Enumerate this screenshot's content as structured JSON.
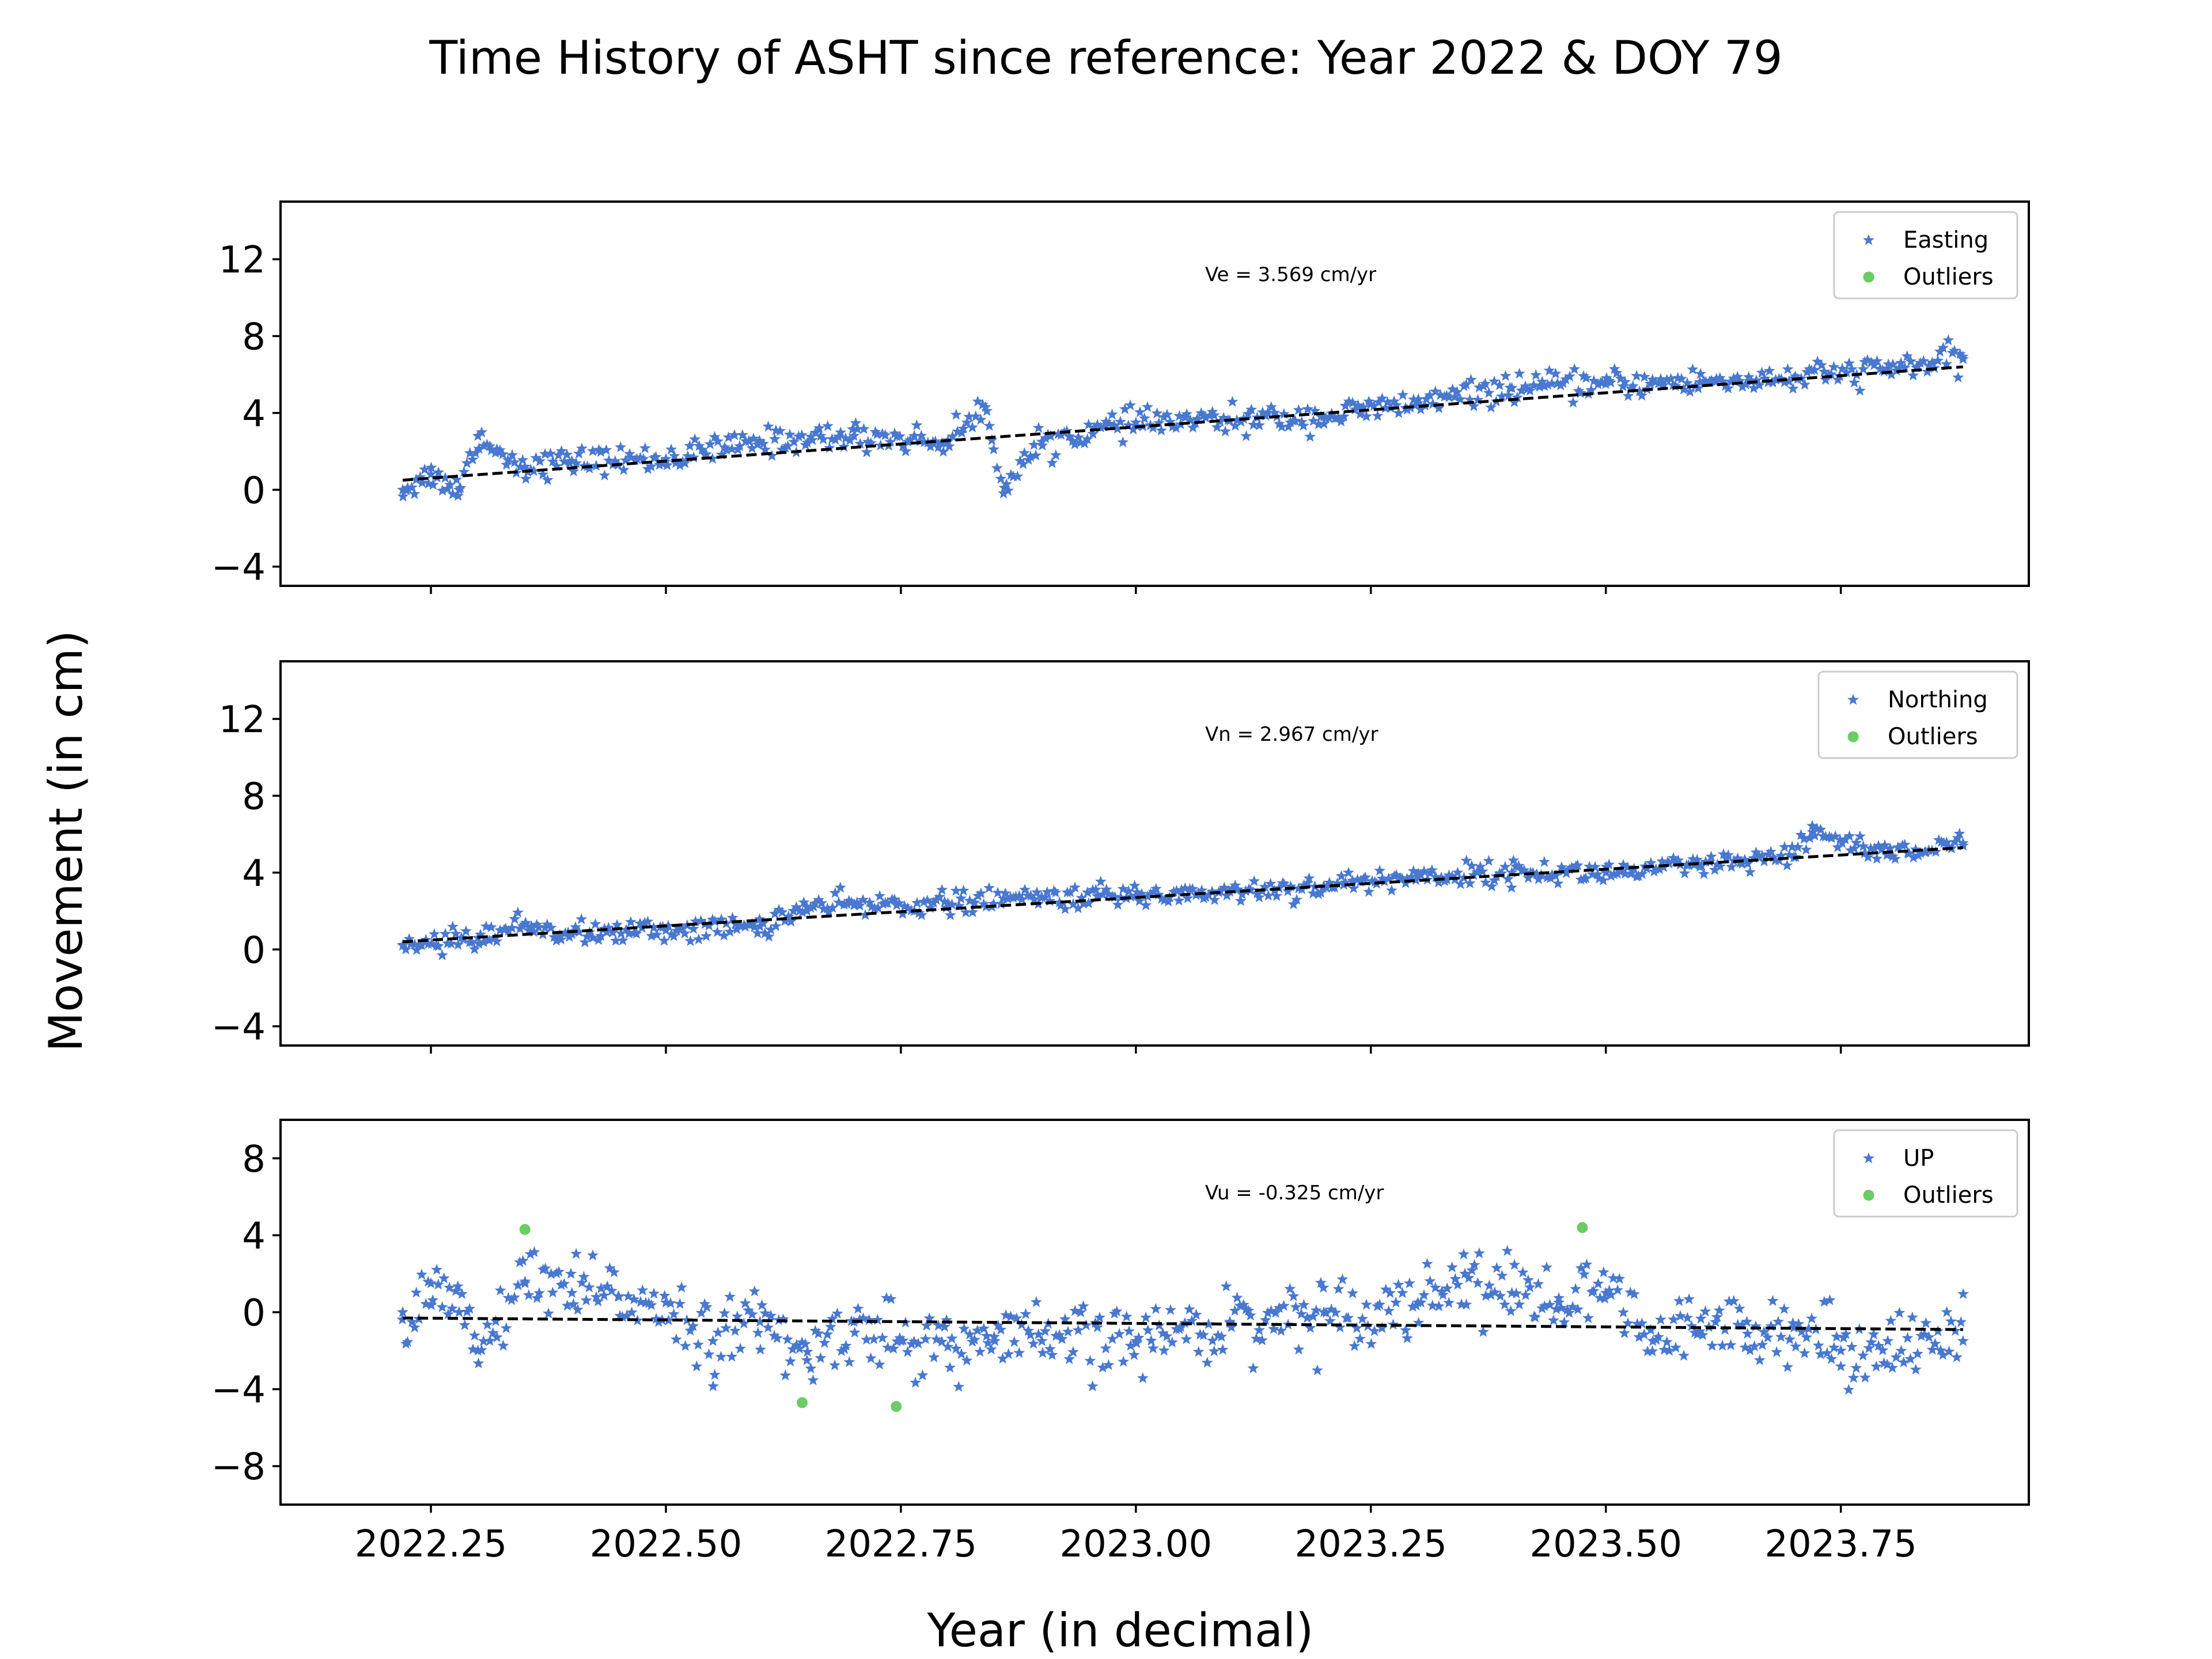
{
  "figure": {
    "title": "Time History of ASHT since reference: Year 2022 & DOY 79",
    "xlabel": "Year (in decimal)",
    "ylabel": "Movement (in cm)"
  },
  "colors": {
    "data": "#4878d0",
    "outliers": "#6acc64",
    "fit": "#000000",
    "frame": "#000000"
  },
  "chart_data": [
    {
      "type": "scatter",
      "panel": "east",
      "series": [
        {
          "name": "Easting",
          "marker": "star",
          "color": "#4878d0",
          "description": "daily positions"
        },
        {
          "name": "Outliers",
          "marker": "circle",
          "color": "#6acc64",
          "x": [],
          "y": []
        }
      ],
      "trend": {
        "x": [
          2022.22,
          2023.88
        ],
        "y": [
          0.5,
          6.4
        ],
        "style": "dashed"
      },
      "annotation": "Ve =  3.569 cm/yr",
      "xlim": [
        2022.09,
        2023.95
      ],
      "ylim": [
        -5,
        15
      ],
      "yticks": [
        -4,
        0,
        4,
        8,
        12
      ],
      "xticks": [
        2022.25,
        2022.5,
        2022.75,
        2023.0,
        2023.25,
        2023.5,
        2023.75
      ],
      "legend": "top-right",
      "approx_points": {
        "x": [
          2022.22,
          2022.25,
          2022.28,
          2022.3,
          2022.32,
          2022.35,
          2022.4,
          2022.5,
          2022.6,
          2022.7,
          2022.8,
          2022.84,
          2022.86,
          2022.9,
          2023.0,
          2023.1,
          2023.2,
          2023.3,
          2023.4,
          2023.5,
          2023.6,
          2023.7,
          2023.8,
          2023.88
        ],
        "y": [
          0.0,
          0.8,
          0.0,
          2.8,
          2.0,
          1.2,
          1.5,
          1.6,
          2.5,
          2.8,
          2.5,
          4.3,
          0.1,
          2.5,
          3.5,
          3.6,
          3.8,
          4.5,
          5.3,
          5.5,
          5.6,
          5.8,
          6.3,
          6.8
        ]
      }
    },
    {
      "type": "scatter",
      "panel": "north",
      "series": [
        {
          "name": "Northing",
          "marker": "star",
          "color": "#4878d0",
          "description": "daily positions"
        },
        {
          "name": "Outliers",
          "marker": "circle",
          "color": "#6acc64",
          "x": [],
          "y": []
        }
      ],
      "trend": {
        "x": [
          2022.22,
          2023.88
        ],
        "y": [
          0.4,
          5.3
        ],
        "style": "dashed"
      },
      "annotation": "Vn =  2.967 cm/yr",
      "xlim": [
        2022.09,
        2023.95
      ],
      "ylim": [
        -5,
        15
      ],
      "yticks": [
        -4,
        0,
        4,
        8,
        12
      ],
      "xticks": [
        2022.25,
        2022.5,
        2022.75,
        2023.0,
        2023.25,
        2023.5,
        2023.75
      ],
      "legend": "top-right",
      "approx_points": {
        "x": [
          2022.22,
          2022.3,
          2022.35,
          2022.4,
          2022.5,
          2022.6,
          2022.65,
          2022.7,
          2022.8,
          2022.9,
          2023.0,
          2023.1,
          2023.2,
          2023.3,
          2023.4,
          2023.5,
          2023.6,
          2023.7,
          2023.72,
          2023.8,
          2023.88
        ],
        "y": [
          0.2,
          0.6,
          1.3,
          0.8,
          1.0,
          1.2,
          2.2,
          2.3,
          2.4,
          2.7,
          2.8,
          3.0,
          3.3,
          3.8,
          4.0,
          4.0,
          4.3,
          4.8,
          6.1,
          5.0,
          5.4
        ]
      }
    },
    {
      "type": "scatter",
      "panel": "up",
      "series": [
        {
          "name": "UP",
          "marker": "star",
          "color": "#4878d0",
          "description": "daily positions"
        },
        {
          "name": "Outliers",
          "marker": "circle",
          "color": "#6acc64",
          "x": [
            2022.35,
            2022.645,
            2022.745,
            2023.475
          ],
          "y": [
            4.3,
            -4.7,
            -4.9,
            4.4
          ]
        }
      ],
      "trend": {
        "x": [
          2022.22,
          2023.88
        ],
        "y": [
          -0.3,
          -0.9
        ],
        "style": "dashed"
      },
      "annotation": "Vu = -0.325 cm/yr",
      "xlim": [
        2022.09,
        2023.95
      ],
      "ylim": [
        -10,
        10
      ],
      "yticks": [
        -8,
        -4,
        0,
        4,
        8
      ],
      "xticks": [
        2022.25,
        2022.5,
        2022.75,
        2023.0,
        2023.25,
        2023.5,
        2023.75
      ],
      "xticklabels": [
        "2022.25",
        "2022.50",
        "2022.75",
        "2023.00",
        "2023.25",
        "2023.50",
        "2023.75"
      ],
      "legend": "top-right",
      "approx_points": {
        "x": [
          2022.22,
          2022.25,
          2022.28,
          2022.3,
          2022.35,
          2022.4,
          2022.45,
          2022.5,
          2022.55,
          2022.6,
          2022.65,
          2022.7,
          2022.75,
          2022.8,
          2022.85,
          2022.9,
          2023.0,
          2023.1,
          2023.2,
          2023.3,
          2023.35,
          2023.4,
          2023.45,
          2023.5,
          2023.55,
          2023.6,
          2023.65,
          2023.7,
          2023.75,
          2023.8,
          2023.88
        ],
        "y": [
          0.0,
          1.5,
          0.0,
          -2.0,
          1.5,
          1.0,
          0.8,
          0.5,
          -1.5,
          -0.5,
          -2.5,
          -0.5,
          -1.5,
          -1.8,
          -1.5,
          -1.5,
          -1.5,
          -0.5,
          0.0,
          0.5,
          2.0,
          1.0,
          0.5,
          1.0,
          -1.5,
          -1.0,
          -0.5,
          -0.8,
          -2.0,
          -1.5,
          -1.5
        ]
      }
    }
  ]
}
